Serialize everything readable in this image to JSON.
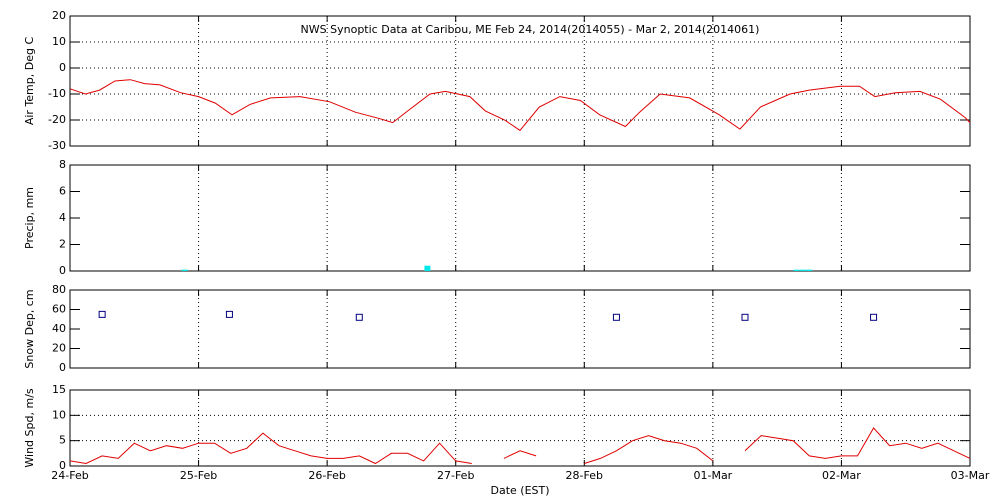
{
  "chart_data": [
    {
      "type": "line",
      "title": "NWS Synoptic Data at Caribou, ME   Feb 24, 2014(2014055) - Mar  2, 2014(2014061)",
      "y_label": "Air Temp, Deg C",
      "color": "#e00000",
      "grid": "both",
      "x": [
        0,
        0.12,
        0.23,
        0.35,
        0.47,
        0.58,
        0.7,
        0.86,
        1.0,
        1.13,
        1.26,
        1.4,
        1.56,
        1.79,
        2.02,
        2.22,
        2.41,
        2.51,
        2.64,
        2.8,
        2.92,
        3.11,
        3.23,
        3.38,
        3.5,
        3.65,
        3.81,
        3.97,
        4.12,
        4.32,
        4.43,
        4.59,
        4.82,
        5.05,
        5.21,
        5.37,
        5.6,
        5.75,
        5.99,
        6.14,
        6.26,
        6.42,
        6.61,
        6.77,
        6.96,
        7.0
      ],
      "values": [
        -8,
        -10,
        -8.5,
        -5,
        -4.5,
        -6,
        -6.5,
        -9.5,
        -11,
        -13.5,
        -18,
        -14,
        -11.5,
        -11,
        -13,
        -17,
        -19.5,
        -21,
        -16,
        -10,
        -9,
        -11,
        -16.5,
        -20,
        -24,
        -15,
        -11,
        -12.5,
        -18,
        -22.5,
        -17,
        -10,
        -11.5,
        -18,
        -23.5,
        -15,
        -10,
        -8.5,
        -7,
        -7,
        -11,
        -9.5,
        -9,
        -12,
        -19,
        -21
      ],
      "xlim": [
        0,
        7
      ],
      "xticks": [
        0,
        1,
        2,
        3,
        4,
        5,
        6,
        7
      ],
      "ylim": [
        -30,
        20
      ],
      "yticks": [
        -30,
        -20,
        -10,
        0,
        10,
        20
      ]
    },
    {
      "type": "bar",
      "y_label": "Precip, mm",
      "color": "#00e8e8",
      "grid": "x",
      "x": [
        0.89,
        2.78,
        5.65,
        5.7,
        5.75
      ],
      "values": [
        0.1,
        0.4,
        0.1,
        0.1,
        0.1
      ],
      "xlim": [
        0,
        7
      ],
      "xticks": [
        0,
        1,
        2,
        3,
        4,
        5,
        6,
        7
      ],
      "ylim": [
        0,
        8
      ],
      "yticks": [
        0,
        2,
        4,
        6,
        8
      ]
    },
    {
      "type": "scatter",
      "y_label": "Snow Dep, cm",
      "color": "#000080",
      "grid": "x",
      "x": [
        0.25,
        1.24,
        2.25,
        4.25,
        5.25,
        6.25
      ],
      "values": [
        55,
        55,
        52,
        52,
        52,
        52
      ],
      "xlim": [
        0,
        7
      ],
      "xticks": [
        0,
        1,
        2,
        3,
        4,
        5,
        6,
        7
      ],
      "ylim": [
        0,
        80
      ],
      "yticks": [
        0,
        20,
        40,
        60,
        80
      ]
    },
    {
      "type": "line",
      "y_label": "Wind Spd, m/s",
      "x_label": "Date (EST)",
      "color": "#e00000",
      "grid": "both",
      "x": [
        0,
        0.125,
        0.25,
        0.375,
        0.5,
        0.625,
        0.75,
        0.875,
        1,
        1.125,
        1.25,
        1.375,
        1.5,
        1.625,
        1.75,
        1.875,
        2,
        2.125,
        2.25,
        2.375,
        2.5,
        2.625,
        2.75,
        2.875,
        3,
        3.125,
        3.25,
        3.375,
        3.5,
        3.625,
        3.75,
        3.875,
        4,
        4.125,
        4.25,
        4.375,
        4.5,
        4.625,
        4.75,
        4.875,
        5,
        5.125,
        5.25,
        5.375,
        5.5,
        5.625,
        5.75,
        5.875,
        6,
        6.125,
        6.25,
        6.375,
        6.5,
        6.625,
        6.75,
        6.875,
        7
      ],
      "values": [
        1,
        0.5,
        2,
        1.5,
        4.5,
        3,
        4,
        3.5,
        4.5,
        4.5,
        2.5,
        3.5,
        6.5,
        4,
        3,
        2,
        1.5,
        1.5,
        2,
        0.5,
        2.5,
        2.5,
        1,
        4.5,
        1,
        0.5,
        null,
        1.5,
        3,
        2,
        null,
        null,
        0.5,
        1.5,
        3,
        5,
        6,
        5,
        4.5,
        3.5,
        1,
        null,
        3,
        6,
        5.5,
        5,
        2,
        1.5,
        2,
        2,
        7.5,
        4,
        4.5,
        3.5,
        4.5,
        3,
        1.5
      ],
      "xlim": [
        0,
        7
      ],
      "xticks": [
        {
          "value": 0,
          "label": "24-Feb"
        },
        {
          "value": 1,
          "label": "25-Feb"
        },
        {
          "value": 2,
          "label": "26-Feb"
        },
        {
          "value": 3,
          "label": "27-Feb"
        },
        {
          "value": 4,
          "label": "28-Feb"
        },
        {
          "value": 5,
          "label": "01-Mar"
        },
        {
          "value": 6,
          "label": "02-Mar"
        },
        {
          "value": 7,
          "label": "03-Mar"
        }
      ],
      "ylim": [
        0,
        15
      ],
      "yticks": [
        0,
        5,
        10,
        15
      ]
    }
  ]
}
